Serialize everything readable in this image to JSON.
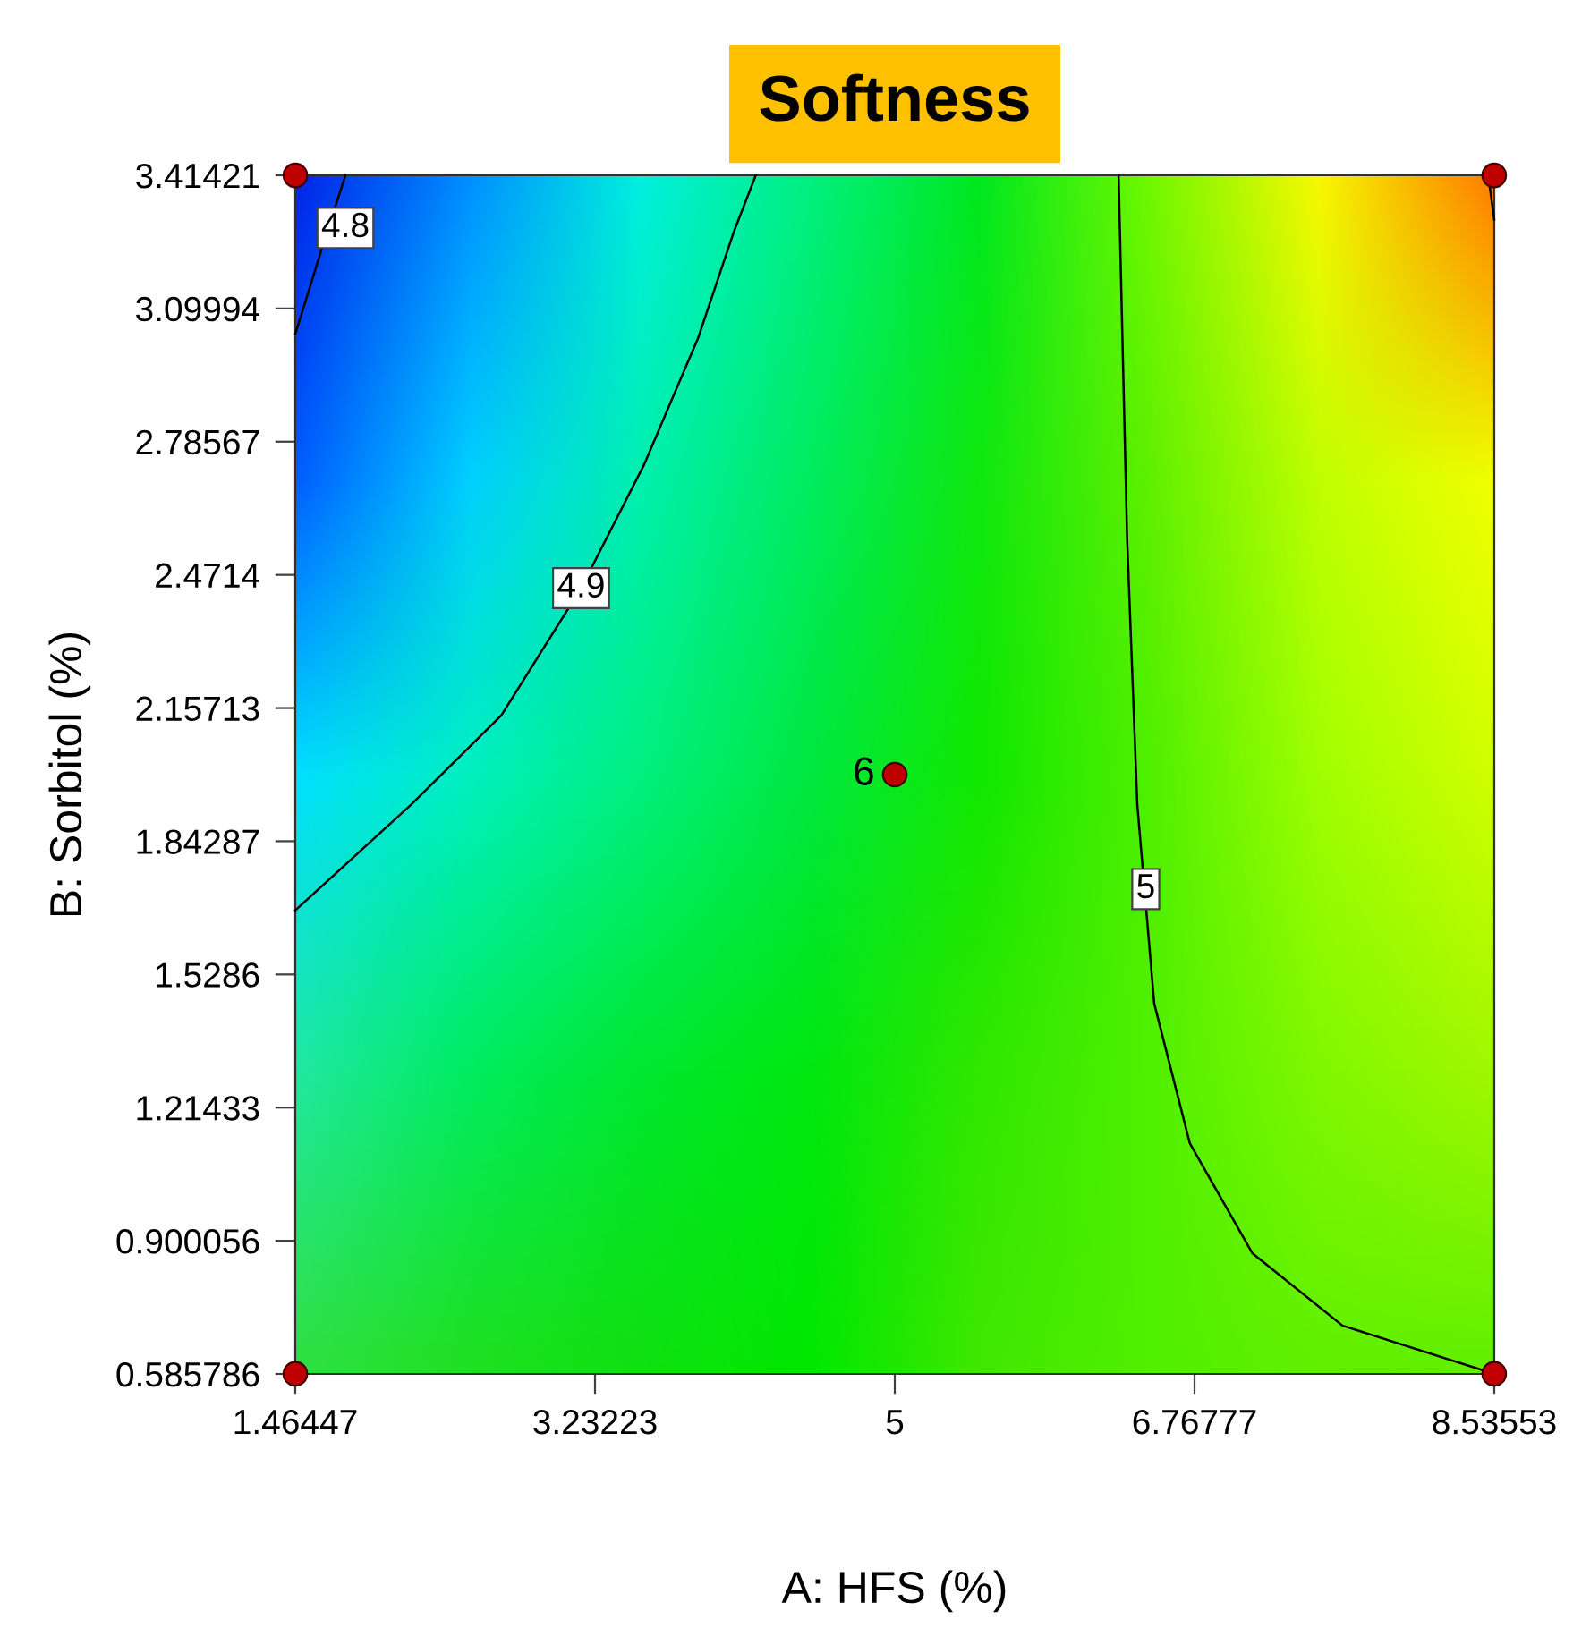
{
  "chart_data": {
    "type": "line",
    "title": "Softness",
    "xlabel": "A: HFS (%)",
    "ylabel": "B: Sorbitol (%)",
    "xlim": [
      1.46447,
      8.53553
    ],
    "ylim": [
      0.585786,
      3.41421
    ],
    "xticks": [
      1.46447,
      3.23223,
      5,
      6.76777,
      8.53553
    ],
    "yticks": [
      0.585786,
      0.900056,
      1.21433,
      1.5286,
      1.84287,
      2.15713,
      2.4714,
      2.78567,
      3.09994,
      3.41421
    ],
    "line_style": "solid",
    "series": [
      {
        "type": "scatter",
        "marker": "circle",
        "color": "#c00000",
        "x": [
          1.465,
          1.465,
          8.535,
          8.535,
          5
        ],
        "values": [
          0.586,
          3.414,
          0.586,
          3.414,
          2.0
        ]
      },
      {
        "color": "#000000",
        "x": [
          1.465,
          1.62,
          1.76
        ],
        "values": [
          3.04,
          3.24,
          3.414
        ]
      },
      {
        "color": "#000000",
        "x": [
          1.465,
          2.15,
          2.68,
          3.15,
          3.52,
          3.84,
          4.05,
          4.18
        ],
        "values": [
          1.68,
          1.93,
          2.14,
          2.44,
          2.73,
          3.03,
          3.28,
          3.414
        ]
      },
      {
        "color": "#000000",
        "x": [
          6.32,
          6.37,
          6.43,
          6.53,
          6.74,
          7.11,
          7.64,
          8.535
        ],
        "values": [
          3.414,
          2.56,
          1.93,
          1.46,
          1.13,
          0.87,
          0.7,
          0.586
        ]
      },
      {
        "color": "#000000",
        "x": [
          8.5,
          8.535
        ],
        "values": [
          3.414,
          3.31
        ]
      }
    ],
    "annotations": [
      {
        "text": "4.8",
        "x": 1.76,
        "y": 3.29
      },
      {
        "text": "4.9",
        "x": 3.15,
        "y": 2.44
      },
      {
        "text": "5",
        "x": 6.48,
        "y": 1.73
      },
      {
        "text": "6",
        "x": 5,
        "y": 2.0
      }
    ]
  }
}
